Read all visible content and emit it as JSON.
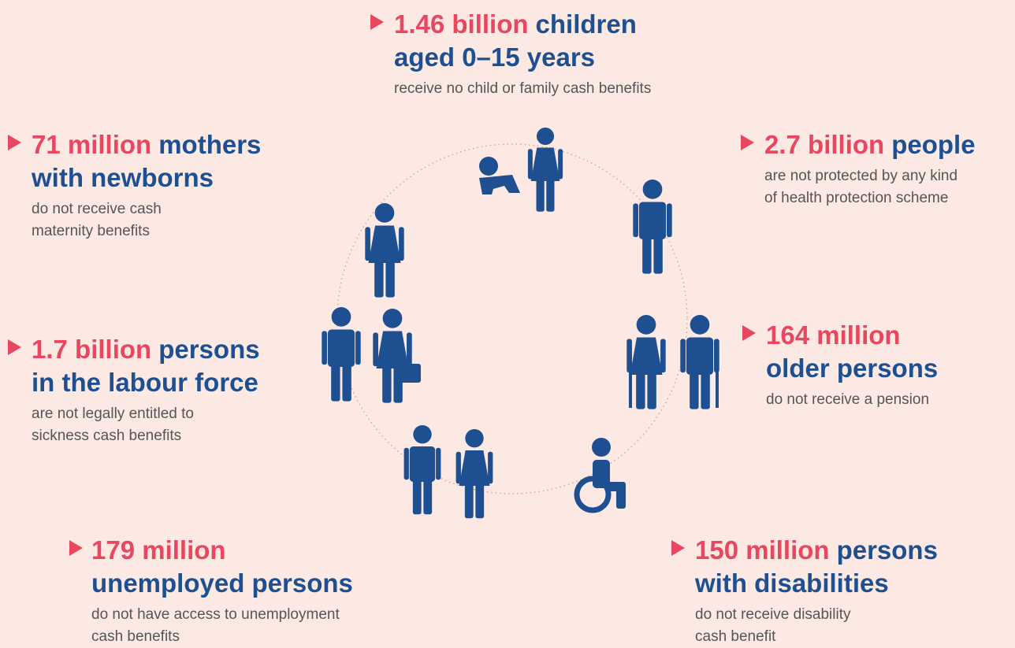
{
  "items": [
    {
      "heading_lines": [
        [
          {
            "text": "1.46 billion",
            "accent": true
          },
          {
            "text": "children"
          }
        ],
        [
          {
            "text": "aged 0–15 years"
          }
        ]
      ],
      "description": [
        "receive no child or family cash benefits"
      ]
    },
    {
      "heading_lines": [
        [
          {
            "text": "71 million",
            "accent": true
          },
          {
            "text": "mothers"
          }
        ],
        [
          {
            "text": "with newborns"
          }
        ]
      ],
      "description": [
        "do not receive cash",
        "maternity benefits"
      ]
    },
    {
      "heading_lines": [
        [
          {
            "text": "2.7 billion",
            "accent": true
          },
          {
            "text": "people"
          }
        ]
      ],
      "description": [
        "are not protected by any kind",
        "of health protection scheme"
      ]
    },
    {
      "heading_lines": [
        [
          {
            "text": "1.7 billion",
            "accent": true
          },
          {
            "text": "persons"
          }
        ],
        [
          {
            "text": "in the labour force"
          }
        ]
      ],
      "description": [
        "are not legally entitled to",
        "sickness cash benefits"
      ]
    },
    {
      "heading_lines": [
        [
          {
            "text": "164 million",
            "accent": true
          }
        ],
        [
          {
            "text": "older persons"
          }
        ]
      ],
      "description": [
        "do not receive a pension"
      ]
    },
    {
      "heading_lines": [
        [
          {
            "text": "179 million",
            "accent": true
          }
        ],
        [
          {
            "text": "unemployed persons"
          }
        ]
      ],
      "description": [
        "do not have access to unemployment",
        "cash benefits"
      ]
    },
    {
      "heading_lines": [
        [
          {
            "text": "150 million",
            "accent": true
          },
          {
            "text": "persons"
          }
        ],
        [
          {
            "text": "with disabilities"
          }
        ]
      ],
      "description": [
        "do not receive disability",
        "cash benefit"
      ]
    }
  ]
}
